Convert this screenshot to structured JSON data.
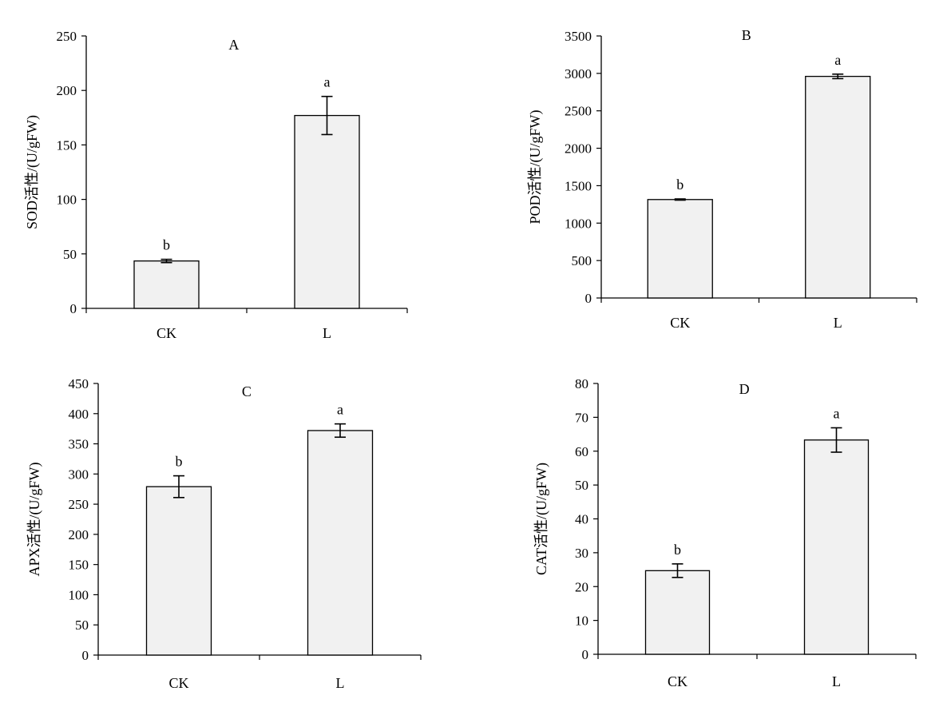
{
  "chart_data": [
    {
      "type": "bar",
      "title": "A",
      "ylabel": "SOD活性/(U/gFW)",
      "categories": [
        "CK",
        "L"
      ],
      "values": [
        43.5,
        177
      ],
      "errors": [
        1.5,
        17.5
      ],
      "significance": [
        "b",
        "a"
      ],
      "ylim": [
        0,
        250
      ],
      "yticks": [
        0,
        50,
        100,
        150,
        200,
        250
      ],
      "ytick_labels": [
        "0",
        "50",
        "100",
        "150",
        "200",
        "250"
      ],
      "grid": false,
      "bar_color": "#f1f1f1"
    },
    {
      "type": "bar",
      "title": "B",
      "ylabel": "POD活性/(U/gFW)",
      "categories": [
        "CK",
        "L"
      ],
      "values": [
        1315,
        2960
      ],
      "errors": [
        8,
        30
      ],
      "significance": [
        "b",
        "a"
      ],
      "ylim": [
        0,
        3500
      ],
      "yticks": [
        0,
        500,
        1000,
        1500,
        2000,
        2500,
        3000,
        3500
      ],
      "ytick_labels": [
        "0",
        "500",
        "1000",
        "1500",
        "2000",
        "2500",
        "3000",
        "3500"
      ],
      "grid": false,
      "bar_color": "#f1f1f1"
    },
    {
      "type": "bar",
      "title": "C",
      "ylabel": "APX活性/(U/gFW)",
      "categories": [
        "CK",
        "L"
      ],
      "values": [
        279,
        372
      ],
      "errors": [
        18,
        11
      ],
      "significance": [
        "b",
        "a"
      ],
      "ylim": [
        0,
        450
      ],
      "yticks": [
        0,
        50,
        100,
        150,
        200,
        250,
        300,
        350,
        400,
        450
      ],
      "ytick_labels": [
        "0",
        "50",
        "100",
        "150",
        "200",
        "250",
        "300",
        "350",
        "400",
        "450"
      ],
      "grid": false,
      "bar_color": "#f1f1f1"
    },
    {
      "type": "bar",
      "title": "D",
      "ylabel": "CAT活性/(U/gFW)",
      "categories": [
        "CK",
        "L"
      ],
      "values": [
        24.7,
        63.3
      ],
      "errors": [
        2,
        3.6
      ],
      "significance": [
        "b",
        "a"
      ],
      "ylim": [
        0,
        80
      ],
      "yticks": [
        0,
        10,
        20,
        30,
        40,
        50,
        60,
        70,
        80
      ],
      "ytick_labels": [
        "0",
        "10",
        "20",
        "30",
        "40",
        "50",
        "60",
        "70",
        "80"
      ],
      "grid": false,
      "bar_color": "#f1f1f1"
    }
  ]
}
